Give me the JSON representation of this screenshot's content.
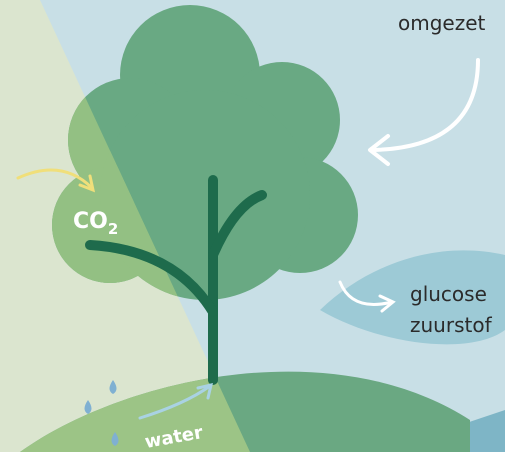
{
  "labels": {
    "converted": "omgezet",
    "co2": {
      "main": "CO",
      "subscript": "2"
    },
    "glucose": "glucose",
    "oxygen": "zuurstof",
    "water": "water"
  }
}
